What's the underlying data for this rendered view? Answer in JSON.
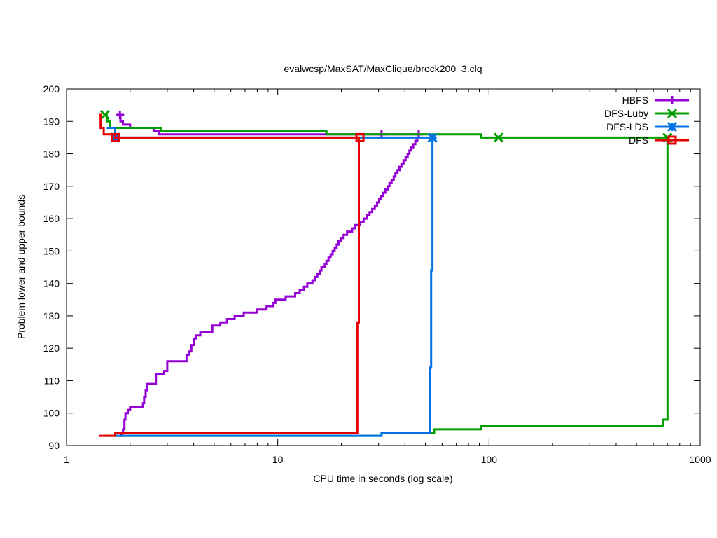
{
  "chart_data": {
    "type": "line",
    "title": "evalwcsp/MaxSAT/MaxClique/brock200_3.clq",
    "xlabel": "CPU time in seconds (log scale)",
    "ylabel": "Problem lower and upper bounds",
    "xscale": "log",
    "xlim": [
      1,
      1000
    ],
    "ylim": [
      90,
      200
    ],
    "x_ticks": [
      1,
      10,
      100,
      1000
    ],
    "x_tick_labels": [
      "1",
      "10",
      "100",
      "1000"
    ],
    "y_ticks": [
      90,
      100,
      110,
      120,
      130,
      140,
      150,
      160,
      170,
      180,
      190,
      200
    ],
    "y_tick_labels": [
      "90",
      "100",
      "110",
      "120",
      "130",
      "140",
      "150",
      "160",
      "170",
      "180",
      "190",
      "200"
    ],
    "grid": false,
    "legend_position": "top-right",
    "series": [
      {
        "name": "HBFS",
        "color": "#9400d3",
        "marker": "plus",
        "upper": [
          [
            1.79,
            192
          ],
          [
            1.8,
            190
          ],
          [
            1.85,
            189
          ],
          [
            2.0,
            189
          ],
          [
            2.0,
            188
          ],
          [
            2.6,
            188
          ],
          [
            2.6,
            187
          ],
          [
            2.75,
            187
          ],
          [
            2.75,
            186
          ],
          [
            46.5,
            186
          ],
          [
            46.5,
            185
          ]
        ],
        "lower": [
          [
            1.79,
            93
          ],
          [
            1.82,
            94
          ],
          [
            1.85,
            95
          ],
          [
            1.88,
            98
          ],
          [
            1.9,
            100
          ],
          [
            1.95,
            101
          ],
          [
            2.0,
            102
          ],
          [
            2.25,
            102
          ],
          [
            2.3,
            103
          ],
          [
            2.33,
            105
          ],
          [
            2.37,
            107
          ],
          [
            2.4,
            109
          ],
          [
            2.6,
            109
          ],
          [
            2.65,
            112
          ],
          [
            2.85,
            112
          ],
          [
            2.9,
            113
          ],
          [
            3.0,
            116
          ],
          [
            3.6,
            116
          ],
          [
            3.7,
            118
          ],
          [
            3.8,
            119
          ],
          [
            3.9,
            121
          ],
          [
            4.0,
            123
          ],
          [
            4.1,
            124
          ],
          [
            4.3,
            125
          ],
          [
            4.85,
            125
          ],
          [
            4.9,
            127
          ],
          [
            5.3,
            127
          ],
          [
            5.35,
            128
          ],
          [
            5.7,
            128
          ],
          [
            5.75,
            129
          ],
          [
            6.2,
            129
          ],
          [
            6.25,
            130
          ],
          [
            6.85,
            130
          ],
          [
            6.9,
            131
          ],
          [
            7.9,
            131
          ],
          [
            7.95,
            132
          ],
          [
            8.8,
            132
          ],
          [
            8.85,
            133
          ],
          [
            9.5,
            133
          ],
          [
            9.55,
            134
          ],
          [
            9.7,
            134
          ],
          [
            9.75,
            135
          ],
          [
            10.8,
            135
          ],
          [
            10.9,
            136
          ],
          [
            12.0,
            136
          ],
          [
            12.1,
            137
          ],
          [
            12.6,
            137
          ],
          [
            12.7,
            138
          ],
          [
            13.2,
            138
          ],
          [
            13.3,
            139
          ],
          [
            13.7,
            139
          ],
          [
            13.8,
            140
          ],
          [
            14.5,
            140
          ],
          [
            14.6,
            141
          ],
          [
            15.0,
            142
          ],
          [
            15.4,
            143
          ],
          [
            15.8,
            144
          ],
          [
            16.1,
            145
          ],
          [
            16.7,
            146
          ],
          [
            17.0,
            147
          ],
          [
            17.4,
            148
          ],
          [
            17.8,
            149
          ],
          [
            18.2,
            150
          ],
          [
            18.6,
            151
          ],
          [
            19.0,
            152
          ],
          [
            19.4,
            153
          ],
          [
            20.0,
            154
          ],
          [
            20.5,
            155
          ],
          [
            21.3,
            156
          ],
          [
            22.2,
            156
          ],
          [
            22.5,
            157
          ],
          [
            23.3,
            158
          ],
          [
            24.1,
            158
          ],
          [
            24.5,
            159
          ],
          [
            25.5,
            160
          ],
          [
            26.5,
            161
          ],
          [
            27.2,
            162
          ],
          [
            28.0,
            163
          ],
          [
            28.8,
            164
          ],
          [
            29.5,
            165
          ],
          [
            30.2,
            166
          ],
          [
            30.8,
            167
          ],
          [
            31.5,
            168
          ],
          [
            32.3,
            169
          ],
          [
            33.1,
            170
          ],
          [
            33.8,
            171
          ],
          [
            34.6,
            172
          ],
          [
            35.4,
            173
          ],
          [
            36.1,
            174
          ],
          [
            36.9,
            175
          ],
          [
            37.7,
            176
          ],
          [
            38.5,
            177
          ],
          [
            39.4,
            178
          ],
          [
            40.3,
            179
          ],
          [
            41.2,
            180
          ],
          [
            42.0,
            181
          ],
          [
            42.9,
            182
          ],
          [
            43.8,
            183
          ],
          [
            44.8,
            184
          ],
          [
            45.8,
            185
          ],
          [
            46.5,
            185
          ]
        ],
        "marker_points": [
          [
            1.79,
            192
          ],
          [
            31.0,
            186
          ],
          [
            46.5,
            186
          ]
        ]
      },
      {
        "name": "DFS-Luby",
        "color": "#009e00",
        "marker": "cross",
        "upper": [
          [
            1.52,
            192
          ],
          [
            1.55,
            190
          ],
          [
            1.6,
            188
          ],
          [
            2.8,
            188
          ],
          [
            2.8,
            187
          ],
          [
            17.0,
            187
          ],
          [
            17.0,
            186
          ],
          [
            92.0,
            186
          ],
          [
            92.0,
            185
          ],
          [
            700,
            185
          ]
        ],
        "lower": [
          [
            1.52,
            93
          ],
          [
            24.0,
            93
          ],
          [
            31.0,
            93
          ],
          [
            31.0,
            94
          ],
          [
            55.0,
            94
          ],
          [
            55.0,
            95
          ],
          [
            92.0,
            95
          ],
          [
            92.0,
            96
          ],
          [
            670,
            96
          ],
          [
            670,
            98
          ],
          [
            700,
            98
          ],
          [
            700,
            185
          ]
        ],
        "marker_points": [
          [
            1.52,
            192
          ],
          [
            111,
            185
          ],
          [
            700,
            185
          ]
        ]
      },
      {
        "name": "DFS-LDS",
        "color": "#0072e5",
        "marker": "star",
        "upper": [
          [
            1.55,
            188
          ],
          [
            1.7,
            188
          ],
          [
            1.7,
            185
          ],
          [
            54.0,
            185
          ]
        ],
        "lower": [
          [
            1.7,
            93
          ],
          [
            31.0,
            93
          ],
          [
            31.0,
            94
          ],
          [
            52.5,
            94
          ],
          [
            52.5,
            114
          ],
          [
            53.2,
            114
          ],
          [
            53.2,
            144
          ],
          [
            54.0,
            144
          ],
          [
            54.0,
            185
          ]
        ],
        "marker_points": [
          [
            1.7,
            185
          ],
          [
            54.0,
            185
          ]
        ]
      },
      {
        "name": "DFS",
        "color": "#e50000",
        "marker": "box",
        "upper": [
          [
            1.43,
            192
          ],
          [
            1.45,
            188
          ],
          [
            1.5,
            186
          ],
          [
            1.7,
            186
          ],
          [
            1.7,
            185
          ],
          [
            24.5,
            185
          ]
        ],
        "lower": [
          [
            1.43,
            93
          ],
          [
            1.7,
            93
          ],
          [
            1.7,
            94
          ],
          [
            23.8,
            94
          ],
          [
            23.8,
            128
          ],
          [
            24.2,
            128
          ],
          [
            24.2,
            185
          ],
          [
            24.5,
            185
          ]
        ],
        "marker_points": [
          [
            1.7,
            185
          ],
          [
            24.5,
            185
          ]
        ]
      }
    ]
  }
}
